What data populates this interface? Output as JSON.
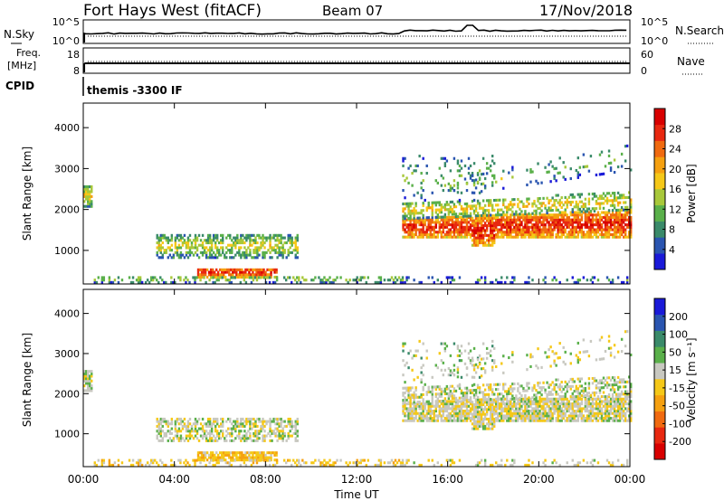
{
  "chart_data": {
    "type": "heatmap",
    "header": {
      "station": "Fort Hays West (fitACF)",
      "beam": "Beam 07",
      "date": "17/Nov/2018",
      "cpid_label": "CPID",
      "cpid_value": "themis -3300 IF"
    },
    "strip_nsky": {
      "left_label": "N.Sky",
      "left_ticks": [
        "10^5",
        "10^0"
      ],
      "right_label": "N.Search",
      "right_ticks": [
        "10^5",
        "10^0"
      ]
    },
    "strip_freq": {
      "left_label_1": "Freq.",
      "left_label_2": "[MHz]",
      "left_ticks": [
        "18",
        "8"
      ],
      "right_label": "Nave",
      "right_ticks": [
        "60",
        "0"
      ]
    },
    "x_axis": {
      "label": "Time UT",
      "range_hours": [
        0,
        24
      ],
      "tick_hours": [
        0,
        4,
        8,
        12,
        16,
        20,
        24
      ],
      "tick_labels": [
        "00:00",
        "04:00",
        "08:00",
        "12:00",
        "16:00",
        "20:00",
        "00:00"
      ]
    },
    "y_axis": {
      "label": "Slant Range [km]",
      "range_km": [
        180,
        4600
      ],
      "tick_km": [
        1000,
        2000,
        3000,
        4000
      ],
      "tick_labels": [
        "1000",
        "2000",
        "3000",
        "4000"
      ]
    },
    "power_panel": {
      "colorbar_label": "Power [dB]",
      "colorbar_ticks": [
        "4",
        "8",
        "12",
        "16",
        "20",
        "24",
        "28"
      ],
      "colors": [
        "#1a1ad8",
        "#2a55b0",
        "#3a8a6a",
        "#5ab04a",
        "#a8c83a",
        "#f5c818",
        "#f5a010",
        "#f06a10",
        "#e82810",
        "#d80000"
      ]
    },
    "velocity_panel": {
      "colorbar_label": "Velocity [m s⁻¹]",
      "colorbar_ticks": [
        "200",
        "100",
        "50",
        "15",
        "-15",
        "-50",
        "-100",
        "-200"
      ],
      "colors": [
        "#1a1ad8",
        "#2a55b0",
        "#3a8a6a",
        "#5ab04a",
        "#c8c8c0",
        "#f5c818",
        "#f5a010",
        "#f06a10",
        "#e82810",
        "#d80000"
      ]
    }
  }
}
